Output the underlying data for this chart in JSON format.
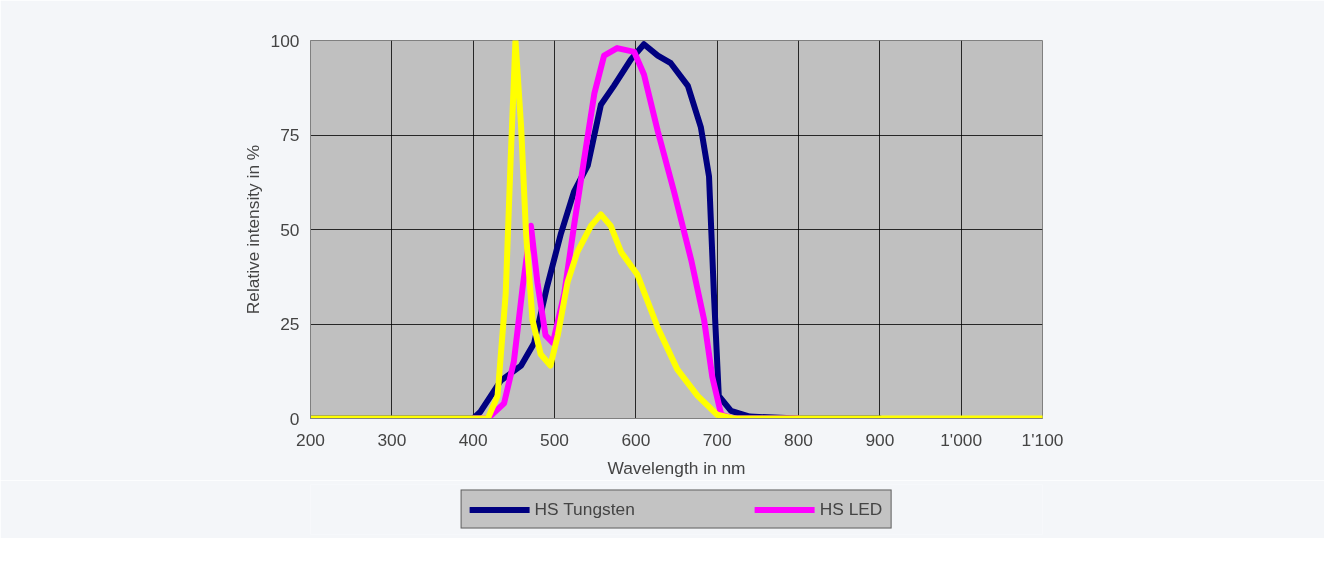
{
  "chart_data": {
    "type": "line",
    "xlabel": "Wavelength in nm",
    "ylabel": "Relative intensity in %",
    "xlim": [
      200,
      1100
    ],
    "ylim": [
      0,
      100
    ],
    "xticks": [
      200,
      300,
      400,
      500,
      600,
      700,
      800,
      900,
      {
        "value": 1000,
        "label": "1'000"
      },
      {
        "value": 1100,
        "label": "1'100"
      }
    ],
    "yticks": [
      0,
      25,
      50,
      75,
      100
    ],
    "grid": true,
    "legend": "bottom",
    "line_style": "solid",
    "marker": "none",
    "series": [
      {
        "name": "HS Tungsten",
        "color": "#000080",
        "x": [
          200,
          300,
          400,
          409,
          434,
          459,
          475,
          491,
          508,
          524,
          541,
          557,
          573,
          594,
          610,
          627,
          643,
          664,
          680,
          690,
          696,
          702,
          717,
          740,
          800,
          900
        ],
        "values": [
          0,
          0,
          0,
          1.8,
          10,
          14,
          20,
          35,
          49,
          60,
          67,
          83,
          88,
          95,
          99,
          96,
          94,
          88,
          77,
          64,
          33,
          6,
          2,
          0.5,
          0,
          0
        ]
      },
      {
        "name": "HS LED",
        "color": "#ff00ff",
        "x": [
          400,
          418,
          438,
          450,
          461,
          471,
          479,
          489,
          498,
          512,
          524,
          536,
          549,
          561,
          577,
          598,
          610,
          627,
          647,
          668,
          684,
          694,
          705,
          720,
          800
        ],
        "values": [
          0,
          0,
          4,
          15,
          35,
          51,
          36,
          22,
          20,
          33,
          51,
          68,
          86,
          96,
          98,
          97,
          91,
          76,
          60,
          42,
          26,
          11,
          1,
          0,
          0
        ]
      },
      {
        "color": "#ffff00",
        "x": [
          200,
          300,
          400,
          418,
          430,
          440,
          446,
          452,
          459,
          465,
          473,
          483,
          495,
          504,
          516,
          528,
          545,
          557,
          569,
          582,
          602,
          627,
          651,
          676,
          700,
          720,
          800,
          900,
          1000,
          1100
        ],
        "values": [
          0,
          0,
          0,
          0,
          6,
          33,
          68,
          100,
          77,
          49,
          26,
          17,
          14,
          22,
          36,
          44,
          51,
          54,
          51,
          44,
          38,
          24,
          13,
          6,
          1,
          0,
          0,
          0,
          0,
          0
        ]
      }
    ]
  }
}
